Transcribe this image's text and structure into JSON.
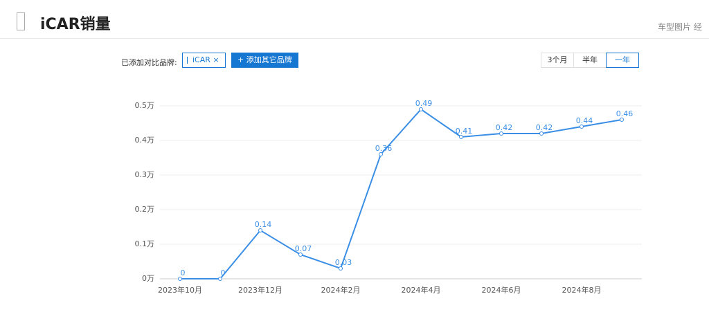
{
  "header": {
    "title": "iCAR销量",
    "nav": "车型图片 经"
  },
  "controls": {
    "compare_label": "已添加对比品牌:",
    "brand_tag": "iCAR",
    "remove": "×",
    "add_button": "+ 添加其它品牌",
    "ranges": [
      "3个月",
      "半年",
      "一年"
    ],
    "active_range": 2
  },
  "chart_data": {
    "type": "line",
    "categories": [
      "2023年10月",
      null,
      "2023年12月",
      null,
      "2024年2月",
      null,
      "2024年4月",
      null,
      "2024年6月",
      null,
      "2024年8月",
      null
    ],
    "values": [
      0,
      0,
      0.14,
      0.07,
      0.03,
      0.36,
      0.49,
      0.41,
      0.42,
      0.42,
      0.44,
      0.46
    ],
    "color": "#3a8ee6",
    "ylim": [
      0,
      0.5
    ],
    "yticks": [
      {
        "value": 0,
        "label": "0万"
      },
      {
        "value": 0.1,
        "label": "0.1万"
      },
      {
        "value": 0.2,
        "label": "0.2万"
      },
      {
        "value": 0.3,
        "label": "0.3万"
      },
      {
        "value": 0.4,
        "label": "0.4万"
      },
      {
        "value": 0.5,
        "label": "0.5万"
      }
    ],
    "grid": true
  }
}
